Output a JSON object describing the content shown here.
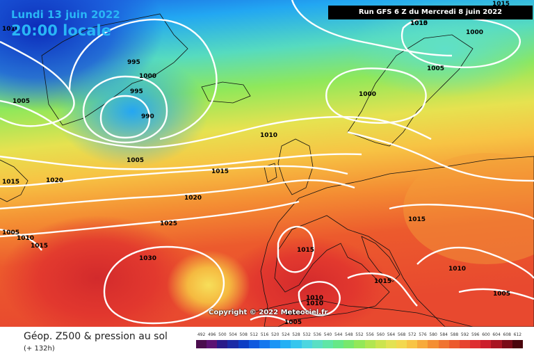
{
  "header": {
    "date_label": "Lundi 13 juin 2022",
    "time_label": "20:00 locale",
    "run_label": "Run GFS 6 Z du Mercredi 8 juin 2022"
  },
  "copyright": "Copyright © 2022 Meteociel.fr",
  "legend": {
    "title": "Géop. Z500 & pression au sol",
    "subtitle": "(+ 132h)",
    "scale_values": [
      "492",
      "496",
      "500",
      "504",
      "508",
      "512",
      "516",
      "520",
      "524",
      "528",
      "532",
      "536",
      "540",
      "544",
      "548",
      "552",
      "556",
      "560",
      "564",
      "568",
      "572",
      "576",
      "580",
      "584",
      "588",
      "592",
      "596",
      "600",
      "604",
      "608",
      "612"
    ],
    "scale_colors": [
      "#4b0d4e",
      "#5c1273",
      "#2a1a8a",
      "#1b2aa6",
      "#0d3dc4",
      "#0f58de",
      "#1477ee",
      "#1c95f5",
      "#25b0f4",
      "#36c6ee",
      "#4cd6e0",
      "#5adfc4",
      "#5fe6a6",
      "#66e887",
      "#78e86c",
      "#93e858",
      "#b1e650",
      "#cce44e",
      "#e3e252",
      "#f3d84e",
      "#f8c444",
      "#f7aa3b",
      "#f48e33",
      "#f07330",
      "#ec5a2d",
      "#e64330",
      "#de2e31",
      "#cc1e2c",
      "#a81422",
      "#7a0b17",
      "#4a050c"
    ]
  },
  "map": {
    "isobars": [
      "1010",
      "1015",
      "995",
      "1000",
      "995",
      "990",
      "1005",
      "1005",
      "1010",
      "1015",
      "1020",
      "1015",
      "1020",
      "1025",
      "1030",
      "1005",
      "1010",
      "1015",
      "1010",
      "1000",
      "1005",
      "1000",
      "1015",
      "1015",
      "1010",
      "1015",
      "1005",
      "1010",
      "1005",
      "1010",
      "1000"
    ]
  }
}
